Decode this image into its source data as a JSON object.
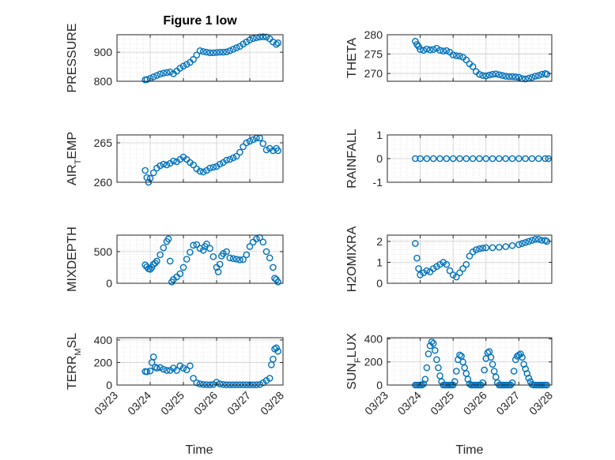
{
  "figure": {
    "title": "Figure 1 low"
  },
  "colors": {
    "marker": "#0072BD",
    "axis": "#262626",
    "grid": "#d9d9d9",
    "background": "#ffffff"
  },
  "x_axis": {
    "label": "Time",
    "tick_labels": [
      "03/23",
      "03/24",
      "03/25",
      "03/26",
      "03/27",
      "03/28"
    ],
    "tick_values": [
      23,
      24,
      25,
      26,
      27,
      28
    ],
    "range": [
      23,
      28
    ]
  },
  "chart_data": [
    {
      "type": "scatter",
      "ylabel": "PRESSURE",
      "title": "Figure 1 low",
      "ylim": [
        800,
        960
      ],
      "yticks": [
        800,
        900
      ],
      "ytick_labels": [
        "800",
        "900"
      ],
      "grid": true,
      "minor_grid": true,
      "x": [
        23.85,
        23.9,
        24.0,
        24.1,
        24.2,
        24.3,
        24.4,
        24.5,
        24.6,
        24.7,
        24.8,
        24.9,
        25.0,
        25.1,
        25.2,
        25.3,
        25.4,
        25.5,
        25.6,
        25.7,
        25.8,
        25.9,
        26.0,
        26.1,
        26.2,
        26.3,
        26.4,
        26.5,
        26.6,
        26.7,
        26.8,
        26.9,
        27.0,
        27.1,
        27.2,
        27.3,
        27.4,
        27.5,
        27.6,
        27.7,
        27.8,
        27.85
      ],
      "y": [
        805,
        806,
        810,
        815,
        820,
        825,
        828,
        830,
        832,
        826,
        835,
        845,
        852,
        858,
        865,
        875,
        890,
        905,
        902,
        900,
        898,
        898,
        899,
        900,
        900,
        901,
        905,
        910,
        915,
        920,
        928,
        935,
        942,
        947,
        950,
        952,
        953,
        952,
        946,
        935,
        927,
        932
      ]
    },
    {
      "type": "scatter",
      "ylabel": "THETA",
      "ylim": [
        268,
        280
      ],
      "yticks": [
        270,
        275,
        280
      ],
      "ytick_labels": [
        "270",
        "275",
        "280"
      ],
      "grid": true,
      "minor_grid": true,
      "x": [
        23.85,
        23.9,
        23.95,
        24.0,
        24.1,
        24.2,
        24.3,
        24.4,
        24.5,
        24.6,
        24.7,
        24.8,
        24.9,
        25.0,
        25.1,
        25.2,
        25.3,
        25.4,
        25.5,
        25.6,
        25.7,
        25.8,
        25.9,
        26.0,
        26.1,
        26.2,
        26.3,
        26.4,
        26.5,
        26.6,
        26.7,
        26.8,
        26.9,
        27.0,
        27.1,
        27.2,
        27.3,
        27.4,
        27.5,
        27.6,
        27.7,
        27.8,
        27.85
      ],
      "y": [
        278.3,
        277.5,
        277,
        276.2,
        276,
        276.3,
        276.1,
        276.2,
        276.5,
        276,
        275.8,
        275.9,
        275.5,
        274.8,
        274.6,
        274.5,
        274.2,
        273.5,
        272.5,
        271.8,
        270.5,
        269.8,
        269.5,
        269.4,
        269.6,
        269.8,
        269.9,
        269.7,
        269.5,
        269.3,
        269.2,
        269.2,
        269.1,
        269.0,
        268.7,
        268.6,
        268.8,
        269.0,
        269.3,
        269.5,
        269.8,
        270.0,
        269.8
      ]
    },
    {
      "type": "scatter",
      "ylabel": "AIR_TEMP",
      "ylim": [
        260,
        266
      ],
      "yticks": [
        260,
        265
      ],
      "ytick_labels": [
        "260",
        "265"
      ],
      "grid": true,
      "minor_grid": true,
      "x": [
        23.85,
        23.9,
        23.95,
        24.0,
        24.1,
        24.2,
        24.3,
        24.4,
        24.5,
        24.6,
        24.7,
        24.8,
        24.9,
        25.0,
        25.1,
        25.2,
        25.3,
        25.4,
        25.5,
        25.6,
        25.7,
        25.8,
        25.9,
        26.0,
        26.1,
        26.2,
        26.3,
        26.4,
        26.5,
        26.6,
        26.7,
        26.8,
        26.9,
        27.0,
        27.1,
        27.2,
        27.3,
        27.4,
        27.5,
        27.6,
        27.7,
        27.8,
        27.85
      ],
      "y": [
        261.5,
        260.6,
        260,
        260.5,
        261.2,
        261.8,
        262.1,
        262.3,
        262.2,
        262.4,
        262.7,
        262.6,
        262.9,
        263.2,
        262.9,
        262.5,
        262.2,
        261.7,
        261.4,
        261.3,
        261.5,
        261.8,
        261.9,
        262.0,
        262.3,
        262.5,
        262.8,
        262.9,
        263.1,
        263.3,
        263.8,
        264.5,
        265.0,
        265.2,
        265.4,
        265.6,
        265.6,
        264.9,
        264.1,
        264.3,
        264.0,
        264.3,
        264.0
      ]
    },
    {
      "type": "scatter",
      "ylabel": "RAINFALL",
      "ylim": [
        -1,
        1
      ],
      "yticks": [
        -1,
        0,
        1
      ],
      "ytick_labels": [
        "-1",
        "0",
        "1"
      ],
      "grid": true,
      "minor_grid": true,
      "x": [
        23.85,
        24.0,
        24.2,
        24.4,
        24.6,
        24.8,
        25.0,
        25.2,
        25.4,
        25.6,
        25.8,
        26.0,
        26.2,
        26.4,
        26.6,
        26.8,
        27.0,
        27.2,
        27.4,
        27.6,
        27.8,
        27.9
      ],
      "y": [
        0,
        0,
        0,
        0,
        0,
        0,
        0,
        0,
        0,
        0,
        0,
        0,
        0,
        0,
        0,
        0,
        0,
        0,
        0,
        0,
        0,
        0
      ]
    },
    {
      "type": "scatter",
      "ylabel": "MIXDEPTH",
      "ylim": [
        0,
        760
      ],
      "yticks": [
        0,
        500
      ],
      "ytick_labels": [
        "0",
        "500"
      ],
      "grid": true,
      "minor_grid": true,
      "x": [
        23.85,
        23.9,
        23.95,
        24.0,
        24.05,
        24.1,
        24.15,
        24.2,
        24.3,
        24.4,
        24.5,
        24.55,
        24.6,
        24.65,
        24.7,
        24.8,
        24.9,
        25.0,
        25.1,
        25.2,
        25.3,
        25.4,
        25.5,
        25.6,
        25.65,
        25.7,
        25.8,
        25.9,
        26.0,
        26.05,
        26.1,
        26.15,
        26.2,
        26.3,
        26.4,
        26.5,
        26.6,
        26.7,
        26.8,
        26.9,
        27.0,
        27.1,
        27.2,
        27.3,
        27.4,
        27.5,
        27.6,
        27.7,
        27.75,
        27.8,
        27.85
      ],
      "y": [
        290,
        260,
        230,
        220,
        250,
        300,
        320,
        350,
        450,
        560,
        660,
        700,
        350,
        20,
        60,
        100,
        150,
        250,
        380,
        490,
        600,
        610,
        550,
        520,
        580,
        620,
        550,
        420,
        250,
        180,
        300,
        430,
        470,
        500,
        400,
        390,
        380,
        370,
        375,
        450,
        580,
        650,
        700,
        720,
        650,
        500,
        400,
        250,
        80,
        60,
        20
      ]
    },
    {
      "type": "scatter",
      "ylabel": "H2OMIXRA",
      "ylim": [
        0,
        2.3
      ],
      "yticks": [
        0,
        1,
        2
      ],
      "ytick_labels": [
        "0",
        "1",
        "2"
      ],
      "grid": true,
      "minor_grid": true,
      "x": [
        23.85,
        23.9,
        23.95,
        24.0,
        24.1,
        24.2,
        24.3,
        24.4,
        24.5,
        24.6,
        24.7,
        24.8,
        24.9,
        25.0,
        25.1,
        25.2,
        25.3,
        25.4,
        25.5,
        25.6,
        25.7,
        25.8,
        25.9,
        26.0,
        26.2,
        26.4,
        26.6,
        26.8,
        27.0,
        27.1,
        27.2,
        27.3,
        27.4,
        27.5,
        27.6,
        27.7,
        27.8,
        27.85
      ],
      "y": [
        1.9,
        1.2,
        0.7,
        0.4,
        0.5,
        0.6,
        0.55,
        0.7,
        0.8,
        0.9,
        1.0,
        0.9,
        0.6,
        0.4,
        0.3,
        0.5,
        0.7,
        0.9,
        1.3,
        1.5,
        1.6,
        1.65,
        1.68,
        1.7,
        1.7,
        1.72,
        1.75,
        1.8,
        1.85,
        1.9,
        1.95,
        2.0,
        2.05,
        2.1,
        2.1,
        2.05,
        2.05,
        2.0
      ]
    },
    {
      "type": "scatter",
      "ylabel": "TERR_MSL",
      "ylim": [
        0,
        420
      ],
      "yticks": [
        0,
        200,
        400
      ],
      "ytick_labels": [
        "0",
        "200",
        "400"
      ],
      "grid": true,
      "minor_grid": true,
      "x": [
        23.85,
        23.9,
        24.0,
        24.05,
        24.1,
        24.15,
        24.2,
        24.3,
        24.4,
        24.5,
        24.6,
        24.7,
        24.8,
        24.9,
        25.0,
        25.1,
        25.2,
        25.3,
        25.4,
        25.5,
        25.6,
        25.7,
        25.8,
        25.9,
        26.0,
        26.1,
        26.2,
        26.3,
        26.4,
        26.5,
        26.6,
        26.7,
        26.8,
        26.9,
        27.0,
        27.1,
        27.2,
        27.3,
        27.4,
        27.5,
        27.6,
        27.65,
        27.7,
        27.75,
        27.8,
        27.85
      ],
      "y": [
        120,
        118,
        125,
        200,
        250,
        160,
        150,
        155,
        140,
        130,
        130,
        150,
        130,
        170,
        150,
        135,
        170,
        60,
        20,
        10,
        5,
        3,
        2,
        5,
        25,
        10,
        5,
        2,
        2,
        2,
        2,
        2,
        2,
        2,
        2,
        2,
        2,
        5,
        20,
        40,
        60,
        180,
        230,
        320,
        330,
        300
      ]
    },
    {
      "type": "scatter",
      "ylabel": "SUN_FLUX",
      "ylim": [
        0,
        410
      ],
      "yticks": [
        0,
        200,
        400
      ],
      "ytick_labels": [
        "0",
        "200",
        "400"
      ],
      "grid": true,
      "minor_grid": true,
      "x": [
        23.85,
        23.9,
        23.95,
        24.0,
        24.05,
        24.1,
        24.15,
        24.2,
        24.25,
        24.3,
        24.35,
        24.4,
        24.45,
        24.5,
        24.55,
        24.6,
        24.65,
        24.7,
        24.75,
        24.8,
        24.85,
        24.9,
        24.95,
        25.0,
        25.05,
        25.1,
        25.15,
        25.2,
        25.25,
        25.3,
        25.35,
        25.4,
        25.45,
        25.5,
        25.55,
        25.6,
        25.65,
        25.7,
        25.75,
        25.8,
        25.85,
        25.9,
        25.95,
        26.0,
        26.05,
        26.1,
        26.15,
        26.2,
        26.25,
        26.3,
        26.35,
        26.4,
        26.45,
        26.5,
        26.55,
        26.6,
        26.65,
        26.7,
        26.75,
        26.8,
        26.85,
        26.9,
        26.95,
        27.0,
        27.05,
        27.1,
        27.15,
        27.2,
        27.25,
        27.3,
        27.35,
        27.4,
        27.45,
        27.5,
        27.55,
        27.6,
        27.65,
        27.7,
        27.75,
        27.8,
        27.85
      ],
      "y": [
        0,
        0,
        0,
        0,
        0,
        10,
        50,
        150,
        270,
        340,
        375,
        360,
        300,
        220,
        150,
        80,
        30,
        0,
        0,
        0,
        0,
        0,
        0,
        0,
        30,
        120,
        220,
        260,
        250,
        200,
        150,
        100,
        50,
        10,
        0,
        0,
        0,
        0,
        0,
        0,
        0,
        20,
        130,
        230,
        280,
        290,
        240,
        180,
        120,
        70,
        20,
        0,
        0,
        0,
        0,
        0,
        0,
        0,
        0,
        20,
        120,
        220,
        250,
        260,
        270,
        240,
        180,
        140,
        100,
        60,
        30,
        5,
        0,
        0,
        0,
        0,
        0,
        0,
        0,
        0,
        0
      ]
    }
  ]
}
